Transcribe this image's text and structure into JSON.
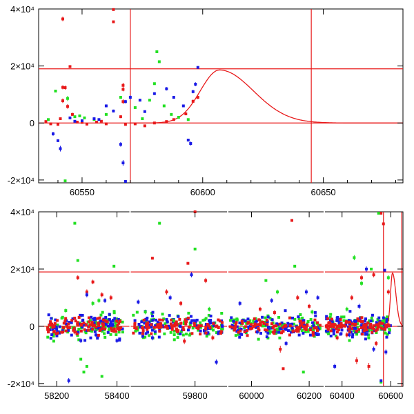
{
  "colors": {
    "red": "#e8191a",
    "green": "#22e022",
    "blue": "#1a1ae6",
    "axis": "#000000"
  },
  "chart_data": [
    {
      "type": "scatter",
      "title": "",
      "xlabel": "",
      "ylabel": "",
      "xlim": [
        60532,
        60683
      ],
      "ylim": [
        -21000,
        40000
      ],
      "xticks": [
        {
          "value": 60550,
          "label": "60550"
        },
        {
          "value": 60600,
          "label": "60600"
        },
        {
          "value": 60650,
          "label": "60650"
        }
      ],
      "yticks": [
        {
          "value": -20000,
          "label": "-2×10⁴"
        },
        {
          "value": 0,
          "label": "0"
        },
        {
          "value": 20000,
          "label": "2×10⁴"
        },
        {
          "value": 40000,
          "label": "4×10⁴"
        }
      ],
      "hlines": [
        0,
        19000
      ],
      "vlines": [
        60570,
        60645
      ],
      "model": {
        "peak_x": 60607,
        "peak_y": 18600,
        "rise_width": 8,
        "decay_width": 14
      },
      "series": [
        {
          "name": "red",
          "color": "#e8191a",
          "points": [
            [
              60542,
              36500,
              800
            ],
            [
              60545,
              19800,
              0
            ],
            [
              60542,
              12500,
              700
            ],
            [
              60543,
              12400,
              700
            ],
            [
              60542,
              7800,
              800
            ],
            [
              60544,
              5800,
              800
            ],
            [
              60546,
              3000,
              600
            ],
            [
              60541,
              1500,
              400
            ],
            [
              60535,
              500,
              300
            ],
            [
              60540,
              -500,
              300
            ],
            [
              60548,
              300,
              300
            ],
            [
              60552,
              -400,
              300
            ],
            [
              60556,
              300,
              300
            ],
            [
              60560,
              -300,
              300
            ],
            [
              60563,
              39800,
              0
            ],
            [
              60563,
              35500,
              0
            ],
            [
              60567,
              13200,
              900
            ],
            [
              60567,
              11800,
              700
            ],
            [
              60567,
              7500,
              800
            ],
            [
              60566,
              2200,
              500
            ],
            [
              60568,
              -500,
              300
            ],
            [
              60572,
              -300,
              300
            ],
            [
              60576,
              -1000,
              300
            ],
            [
              60580,
              0,
              300
            ],
            [
              60585,
              500,
              300
            ],
            [
              60588,
              1200,
              300
            ],
            [
              60593,
              3200,
              500
            ],
            [
              60596,
              7600,
              600
            ],
            [
              60598,
              9000,
              600
            ],
            [
              60537,
              -300,
              300
            ],
            [
              60550,
              200,
              300
            ],
            [
              60558,
              600,
              300
            ]
          ]
        },
        {
          "name": "green",
          "color": "#22e022",
          "points": [
            [
              60539,
              11200,
              0
            ],
            [
              60544,
              8600,
              900
            ],
            [
              60547,
              2200,
              400
            ],
            [
              60543,
              -20300,
              0
            ],
            [
              60551,
              1800,
              300
            ],
            [
              60555,
              1200,
              300
            ],
            [
              60560,
              3000,
              300
            ],
            [
              60566,
              9000,
              500
            ],
            [
              60572,
              5400,
              300
            ],
            [
              60578,
              8000,
              300
            ],
            [
              60580,
              13800,
              0
            ],
            [
              60581,
              25000,
              0
            ],
            [
              60582,
              21500,
              0
            ],
            [
              60584,
              6000,
              300
            ],
            [
              60587,
              3000,
              300
            ],
            [
              60590,
              2000,
              300
            ],
            [
              60594,
              1200,
              300
            ],
            [
              60575,
              1500,
              300
            ],
            [
              60536,
              1200,
              300
            ],
            [
              60549,
              2500,
              300
            ]
          ]
        },
        {
          "name": "blue",
          "color": "#1a1ae6",
          "points": [
            [
              60538,
              -3800,
              700
            ],
            [
              60540,
              -6200,
              0
            ],
            [
              60541,
              -9000,
              1000
            ],
            [
              60545,
              1800,
              400
            ],
            [
              60550,
              800,
              300
            ],
            [
              60555,
              1500,
              300
            ],
            [
              60560,
              6000,
              500
            ],
            [
              60563,
              4200,
              500
            ],
            [
              60566,
              -7500,
              800
            ],
            [
              60567,
              -14000,
              1000
            ],
            [
              60568,
              -20500,
              0
            ],
            [
              60568,
              7500,
              600
            ],
            [
              60570,
              9000,
              700
            ],
            [
              60574,
              8000,
              400
            ],
            [
              60576,
              4000,
              300
            ],
            [
              60580,
              10300,
              500
            ],
            [
              60585,
              12000,
              600
            ],
            [
              60588,
              9000,
              500
            ],
            [
              60592,
              6000,
              400
            ],
            [
              60594,
              -6000,
              0
            ],
            [
              60595,
              -7200,
              700
            ],
            [
              60596,
              11000,
              600
            ],
            [
              60597,
              13600,
              700
            ],
            [
              60598,
              19500,
              0
            ],
            [
              60547,
              600,
              300
            ],
            [
              60557,
              1200,
              300
            ]
          ]
        }
      ]
    },
    {
      "type": "scatter",
      "title": "",
      "xlabel": "",
      "ylabel": "",
      "xlim_segments": [
        [
          58140,
          58440
        ],
        [
          59620,
          59890
        ],
        [
          59920,
          60250
        ],
        [
          60330,
          60650
        ]
      ],
      "ylim": [
        -21000,
        40000
      ],
      "xticks": [
        {
          "value": 58200,
          "label": "58200"
        },
        {
          "value": 58400,
          "label": "58400"
        },
        {
          "value": 59800,
          "label": "59800"
        },
        {
          "value": 60000,
          "label": "60000"
        },
        {
          "value": 60200,
          "label": "60200"
        },
        {
          "value": 60400,
          "label": "60400"
        },
        {
          "value": 60600,
          "label": "60600"
        }
      ],
      "yticks": [
        {
          "value": -20000,
          "label": "-2×10⁴"
        },
        {
          "value": 0,
          "label": "0"
        },
        {
          "value": 20000,
          "label": "2×10⁴"
        },
        {
          "value": 40000,
          "label": "4×10⁴"
        }
      ],
      "hlines": [
        0,
        19000
      ],
      "vlines": [
        60570,
        60645
      ],
      "seasons": [
        {
          "start": 58170,
          "end": 58420
        },
        {
          "start": 59625,
          "end": 59880
        },
        {
          "start": 59925,
          "end": 60240
        },
        {
          "start": 60335,
          "end": 60600
        }
      ],
      "series": [
        {
          "name": "red",
          "color": "#e8191a",
          "points": [
            [
              58270,
              17000,
              800
            ],
            [
              58300,
              12000,
              900
            ],
            [
              58320,
              15500,
              800
            ],
            [
              58350,
              11000,
              900
            ],
            [
              58380,
              10000,
              900
            ],
            [
              58260,
              -2000,
              800
            ],
            [
              59680,
              23800,
              0
            ],
            [
              59720,
              12000,
              900
            ],
            [
              59760,
              8000,
              900
            ],
            [
              59780,
              22000,
              0
            ],
            [
              59800,
              40000,
              0
            ],
            [
              59830,
              16000,
              900
            ],
            [
              59770,
              -5200,
              1000
            ],
            [
              59850,
              -4000,
              900
            ],
            [
              60030,
              6000,
              800
            ],
            [
              60080,
              4800,
              900
            ],
            [
              60100,
              -8000,
              1200
            ],
            [
              60110,
              -14800,
              0
            ],
            [
              60140,
              37000,
              0
            ],
            [
              60160,
              10000,
              900
            ],
            [
              60200,
              7000,
              800
            ],
            [
              60380,
              -4000,
              900
            ],
            [
              60440,
              10000,
              900
            ],
            [
              60460,
              -12000,
              1200
            ],
            [
              60480,
              17000,
              900
            ],
            [
              60510,
              -14000,
              1200
            ],
            [
              60530,
              18000,
              900
            ],
            [
              60560,
              39500,
              0
            ],
            [
              60570,
              35800,
              0
            ],
            [
              60590,
              12000,
              900
            ],
            [
              60420,
              -3000,
              900
            ],
            [
              60540,
              -6000,
              900
            ]
          ]
        },
        {
          "name": "green",
          "color": "#22e022",
          "points": [
            [
              58260,
              36000,
              0
            ],
            [
              58270,
              23000,
              0
            ],
            [
              58280,
              -11500,
              0
            ],
            [
              58290,
              -16000,
              0
            ],
            [
              58300,
              -14000,
              0
            ],
            [
              58320,
              8000,
              800
            ],
            [
              58340,
              9000,
              800
            ],
            [
              58350,
              -17500,
              0
            ],
            [
              58390,
              21000,
              0
            ],
            [
              58230,
              5500,
              700
            ],
            [
              59660,
              5000,
              800
            ],
            [
              59700,
              36000,
              0
            ],
            [
              59740,
              2000,
              700
            ],
            [
              59800,
              27000,
              0
            ],
            [
              59840,
              6000,
              800
            ],
            [
              60050,
              16000,
              0
            ],
            [
              60090,
              12000,
              800
            ],
            [
              60150,
              21000,
              0
            ],
            [
              60180,
              -16000,
              0
            ],
            [
              60210,
              5000,
              800
            ],
            [
              60450,
              24000,
              900
            ],
            [
              60480,
              15000,
              800
            ],
            [
              60520,
              20000,
              0
            ],
            [
              60550,
              39500,
              0
            ],
            [
              60560,
              -19500,
              0
            ],
            [
              60590,
              17000,
              800
            ],
            [
              60420,
              6000,
              800
            ]
          ]
        },
        {
          "name": "blue",
          "color": "#1a1ae6",
          "points": [
            [
              58240,
              -19000,
              900
            ],
            [
              58280,
              -5000,
              800
            ],
            [
              58300,
              11000,
              900
            ],
            [
              58330,
              -3000,
              800
            ],
            [
              58360,
              9000,
              800
            ],
            [
              58400,
              -5000,
              800
            ],
            [
              59640,
              8500,
              800
            ],
            [
              59680,
              -4000,
              900
            ],
            [
              59730,
              10000,
              900
            ],
            [
              59790,
              18000,
              900
            ],
            [
              59860,
              -12500,
              900
            ],
            [
              59960,
              8000,
              800
            ],
            [
              60020,
              -2000,
              800
            ],
            [
              60070,
              9000,
              800
            ],
            [
              60120,
              -6000,
              900
            ],
            [
              60190,
              12000,
              900
            ],
            [
              60230,
              10000,
              800
            ],
            [
              60370,
              -14000,
              900
            ],
            [
              60470,
              7000,
              900
            ],
            [
              60500,
              20000,
              900
            ],
            [
              60530,
              -8000,
              900
            ],
            [
              60560,
              -19000,
              0
            ],
            [
              60575,
              19600,
              0
            ],
            [
              60580,
              -9000,
              900
            ],
            [
              60430,
              -3000,
              800
            ]
          ]
        }
      ]
    }
  ]
}
